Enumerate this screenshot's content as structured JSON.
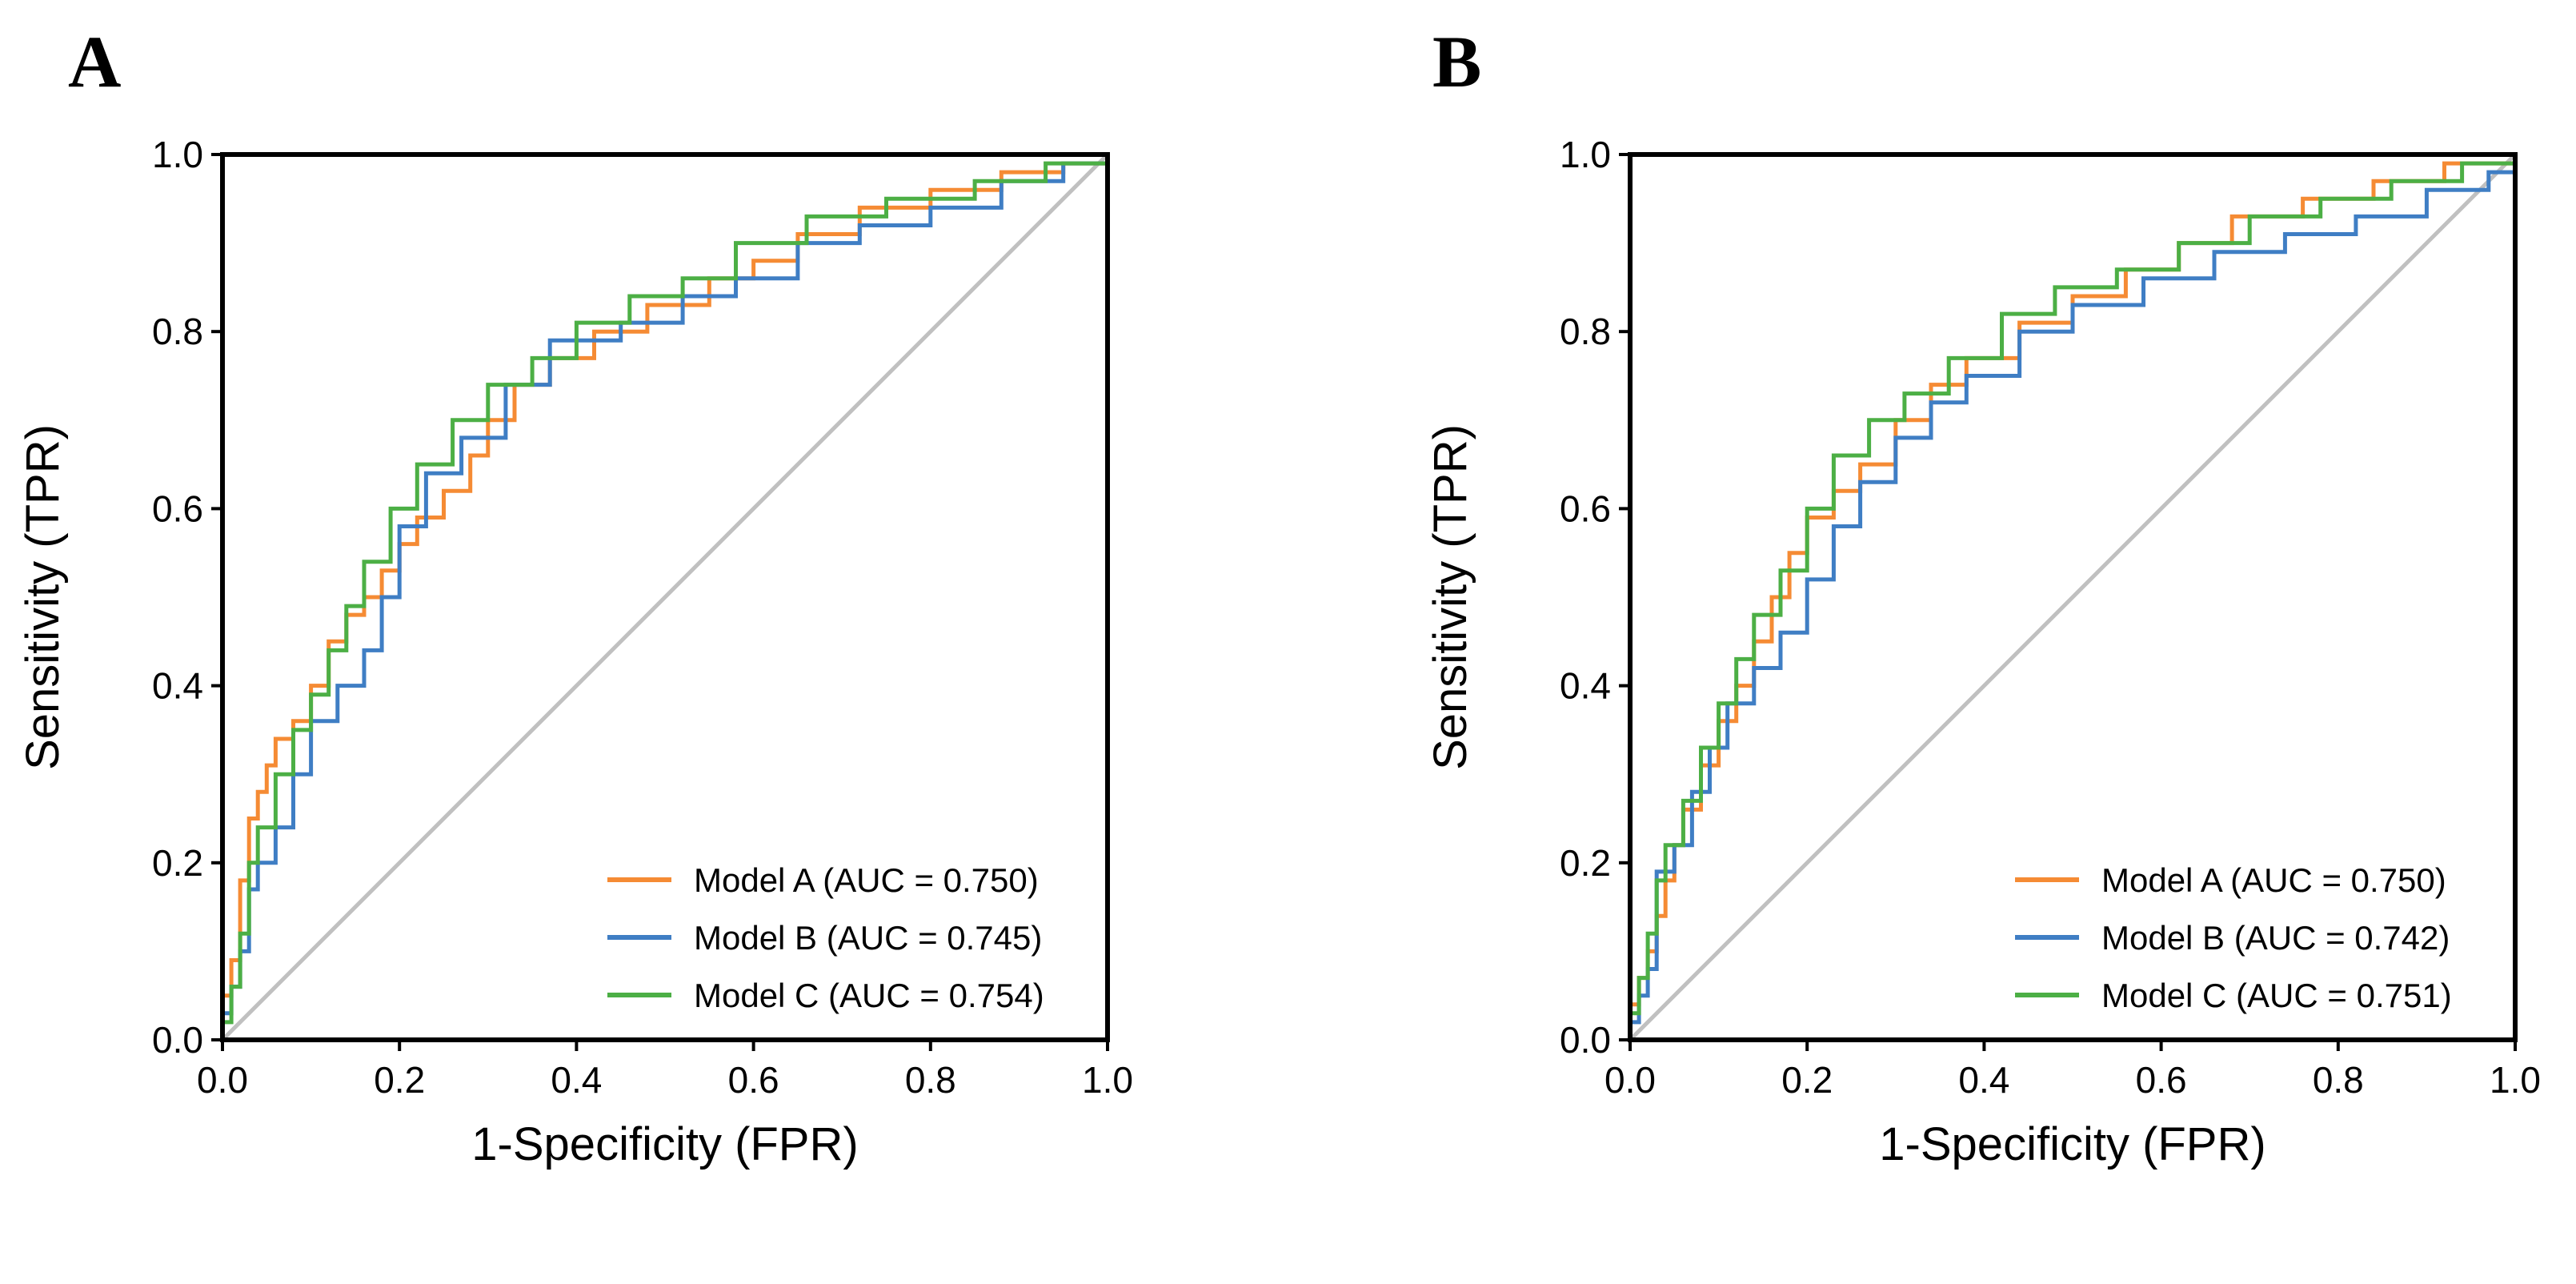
{
  "chart_data": [
    {
      "type": "line",
      "panel": "A",
      "xlabel": "1-Specificity (FPR)",
      "ylabel": "Sensitivity (TPR)",
      "xlim": [
        0,
        1
      ],
      "ylim": [
        0,
        1
      ],
      "xticks": [
        "0.0",
        "0.2",
        "0.4",
        "0.6",
        "0.8",
        "1.0"
      ],
      "yticks": [
        "0.0",
        "0.2",
        "0.4",
        "0.6",
        "0.8",
        "1.0"
      ],
      "legend_position": "bottom-right",
      "diagonal": true,
      "series": [
        {
          "name": "Model A (AUC = 0.750)",
          "color": "#f58b34",
          "x": [
            0,
            0,
            0.01,
            0.01,
            0.02,
            0.02,
            0.03,
            0.03,
            0.04,
            0.04,
            0.05,
            0.05,
            0.06,
            0.06,
            0.08,
            0.08,
            0.1,
            0.1,
            0.12,
            0.12,
            0.14,
            0.14,
            0.16,
            0.16,
            0.18,
            0.18,
            0.2,
            0.2,
            0.22,
            0.22,
            0.25,
            0.25,
            0.28,
            0.28,
            0.3,
            0.3,
            0.33,
            0.33,
            0.37,
            0.37,
            0.42,
            0.42,
            0.48,
            0.48,
            0.55,
            0.55,
            0.6,
            0.6,
            0.65,
            0.65,
            0.72,
            0.72,
            0.8,
            0.8,
            0.88,
            0.88,
            0.95,
            0.95,
            1.0,
            1.0
          ],
          "y": [
            0,
            0.05,
            0.05,
            0.09,
            0.09,
            0.18,
            0.18,
            0.25,
            0.25,
            0.28,
            0.28,
            0.31,
            0.31,
            0.34,
            0.34,
            0.36,
            0.36,
            0.4,
            0.4,
            0.45,
            0.45,
            0.48,
            0.48,
            0.5,
            0.5,
            0.53,
            0.53,
            0.56,
            0.56,
            0.59,
            0.59,
            0.62,
            0.62,
            0.66,
            0.66,
            0.7,
            0.7,
            0.74,
            0.74,
            0.77,
            0.77,
            0.8,
            0.8,
            0.83,
            0.83,
            0.86,
            0.86,
            0.88,
            0.88,
            0.91,
            0.91,
            0.94,
            0.94,
            0.96,
            0.96,
            0.98,
            0.98,
            0.99,
            0.99,
            1.0
          ]
        },
        {
          "name": "Model B (AUC = 0.745)",
          "color": "#3f7ec4",
          "x": [
            0,
            0,
            0.01,
            0.01,
            0.02,
            0.02,
            0.03,
            0.03,
            0.04,
            0.04,
            0.06,
            0.06,
            0.08,
            0.08,
            0.1,
            0.1,
            0.13,
            0.13,
            0.16,
            0.16,
            0.18,
            0.18,
            0.2,
            0.2,
            0.23,
            0.23,
            0.27,
            0.27,
            0.32,
            0.32,
            0.37,
            0.37,
            0.45,
            0.45,
            0.52,
            0.52,
            0.58,
            0.58,
            0.65,
            0.65,
            0.72,
            0.72,
            0.8,
            0.8,
            0.88,
            0.88,
            0.95,
            0.95,
            1.0,
            1.0
          ],
          "y": [
            0,
            0.03,
            0.03,
            0.06,
            0.06,
            0.1,
            0.1,
            0.17,
            0.17,
            0.2,
            0.2,
            0.24,
            0.24,
            0.3,
            0.3,
            0.36,
            0.36,
            0.4,
            0.4,
            0.44,
            0.44,
            0.5,
            0.5,
            0.58,
            0.58,
            0.64,
            0.64,
            0.68,
            0.68,
            0.74,
            0.74,
            0.79,
            0.79,
            0.81,
            0.81,
            0.84,
            0.84,
            0.86,
            0.86,
            0.9,
            0.9,
            0.92,
            0.92,
            0.94,
            0.94,
            0.97,
            0.97,
            0.99,
            0.99,
            1.0
          ]
        },
        {
          "name": "Model C (AUC = 0.754)",
          "color": "#4caf45",
          "x": [
            0,
            0,
            0.01,
            0.01,
            0.02,
            0.02,
            0.03,
            0.03,
            0.04,
            0.04,
            0.06,
            0.06,
            0.08,
            0.08,
            0.1,
            0.1,
            0.12,
            0.12,
            0.14,
            0.14,
            0.16,
            0.16,
            0.19,
            0.19,
            0.22,
            0.22,
            0.26,
            0.26,
            0.3,
            0.3,
            0.35,
            0.35,
            0.4,
            0.4,
            0.46,
            0.46,
            0.52,
            0.52,
            0.58,
            0.58,
            0.66,
            0.66,
            0.75,
            0.75,
            0.85,
            0.85,
            0.93,
            0.93,
            1.0,
            1.0
          ],
          "y": [
            0,
            0.02,
            0.02,
            0.06,
            0.06,
            0.12,
            0.12,
            0.2,
            0.2,
            0.24,
            0.24,
            0.3,
            0.3,
            0.35,
            0.35,
            0.39,
            0.39,
            0.44,
            0.44,
            0.49,
            0.49,
            0.54,
            0.54,
            0.6,
            0.6,
            0.65,
            0.65,
            0.7,
            0.7,
            0.74,
            0.74,
            0.77,
            0.77,
            0.81,
            0.81,
            0.84,
            0.84,
            0.86,
            0.86,
            0.9,
            0.9,
            0.93,
            0.93,
            0.95,
            0.95,
            0.97,
            0.97,
            0.99,
            0.99,
            1.0
          ]
        }
      ]
    },
    {
      "type": "line",
      "panel": "B",
      "xlabel": "1-Specificity (FPR)",
      "ylabel": "Sensitivity (TPR)",
      "xlim": [
        0,
        1
      ],
      "ylim": [
        0,
        1
      ],
      "xticks": [
        "0.0",
        "0.2",
        "0.4",
        "0.6",
        "0.8",
        "1.0"
      ],
      "yticks": [
        "0.0",
        "0.2",
        "0.4",
        "0.6",
        "0.8",
        "1.0"
      ],
      "legend_position": "bottom-right",
      "diagonal": true,
      "series": [
        {
          "name": "Model A (AUC = 0.750)",
          "color": "#f58b34",
          "x": [
            0,
            0,
            0.01,
            0.01,
            0.02,
            0.02,
            0.03,
            0.03,
            0.04,
            0.04,
            0.05,
            0.05,
            0.06,
            0.06,
            0.08,
            0.08,
            0.1,
            0.1,
            0.12,
            0.12,
            0.14,
            0.14,
            0.16,
            0.16,
            0.18,
            0.18,
            0.2,
            0.2,
            0.23,
            0.23,
            0.26,
            0.26,
            0.3,
            0.3,
            0.34,
            0.34,
            0.38,
            0.38,
            0.44,
            0.44,
            0.5,
            0.5,
            0.56,
            0.56,
            0.62,
            0.62,
            0.68,
            0.68,
            0.76,
            0.76,
            0.84,
            0.84,
            0.92,
            0.92,
            1.0,
            1.0
          ],
          "y": [
            0,
            0.04,
            0.04,
            0.07,
            0.07,
            0.1,
            0.1,
            0.14,
            0.14,
            0.18,
            0.18,
            0.22,
            0.22,
            0.26,
            0.26,
            0.31,
            0.31,
            0.36,
            0.36,
            0.4,
            0.4,
            0.45,
            0.45,
            0.5,
            0.5,
            0.55,
            0.55,
            0.59,
            0.59,
            0.62,
            0.62,
            0.65,
            0.65,
            0.7,
            0.7,
            0.74,
            0.74,
            0.77,
            0.77,
            0.81,
            0.81,
            0.84,
            0.84,
            0.87,
            0.87,
            0.9,
            0.9,
            0.93,
            0.93,
            0.95,
            0.95,
            0.97,
            0.97,
            0.99,
            0.99,
            1.0
          ]
        },
        {
          "name": "Model B (AUC = 0.742)",
          "color": "#3f7ec4",
          "x": [
            0,
            0,
            0.01,
            0.01,
            0.02,
            0.02,
            0.03,
            0.03,
            0.05,
            0.05,
            0.07,
            0.07,
            0.09,
            0.09,
            0.11,
            0.11,
            0.14,
            0.14,
            0.17,
            0.17,
            0.2,
            0.2,
            0.23,
            0.23,
            0.26,
            0.26,
            0.3,
            0.3,
            0.34,
            0.34,
            0.38,
            0.38,
            0.44,
            0.44,
            0.5,
            0.5,
            0.58,
            0.58,
            0.66,
            0.66,
            0.74,
            0.74,
            0.82,
            0.82,
            0.9,
            0.9,
            0.97,
            0.97,
            1.0,
            1.0
          ],
          "y": [
            0,
            0.02,
            0.02,
            0.05,
            0.05,
            0.08,
            0.08,
            0.19,
            0.19,
            0.22,
            0.22,
            0.28,
            0.28,
            0.33,
            0.33,
            0.38,
            0.38,
            0.42,
            0.42,
            0.46,
            0.46,
            0.52,
            0.52,
            0.58,
            0.58,
            0.63,
            0.63,
            0.68,
            0.68,
            0.72,
            0.72,
            0.75,
            0.75,
            0.8,
            0.8,
            0.83,
            0.83,
            0.86,
            0.86,
            0.89,
            0.89,
            0.91,
            0.91,
            0.93,
            0.93,
            0.96,
            0.96,
            0.98,
            0.98,
            1.0
          ]
        },
        {
          "name": "Model C (AUC = 0.751)",
          "color": "#4caf45",
          "x": [
            0,
            0,
            0.01,
            0.01,
            0.02,
            0.02,
            0.03,
            0.03,
            0.04,
            0.04,
            0.06,
            0.06,
            0.08,
            0.08,
            0.1,
            0.1,
            0.12,
            0.12,
            0.14,
            0.14,
            0.17,
            0.17,
            0.2,
            0.2,
            0.23,
            0.23,
            0.27,
            0.27,
            0.31,
            0.31,
            0.36,
            0.36,
            0.42,
            0.42,
            0.48,
            0.48,
            0.55,
            0.55,
            0.62,
            0.62,
            0.7,
            0.7,
            0.78,
            0.78,
            0.86,
            0.86,
            0.94,
            0.94,
            1.0,
            1.0
          ],
          "y": [
            0,
            0.03,
            0.03,
            0.07,
            0.07,
            0.12,
            0.12,
            0.18,
            0.18,
            0.22,
            0.22,
            0.27,
            0.27,
            0.33,
            0.33,
            0.38,
            0.38,
            0.43,
            0.43,
            0.48,
            0.48,
            0.53,
            0.53,
            0.6,
            0.6,
            0.66,
            0.66,
            0.7,
            0.7,
            0.73,
            0.73,
            0.77,
            0.77,
            0.82,
            0.82,
            0.85,
            0.85,
            0.87,
            0.87,
            0.9,
            0.9,
            0.93,
            0.93,
            0.95,
            0.95,
            0.97,
            0.97,
            0.99,
            0.99,
            1.0
          ]
        }
      ]
    }
  ]
}
